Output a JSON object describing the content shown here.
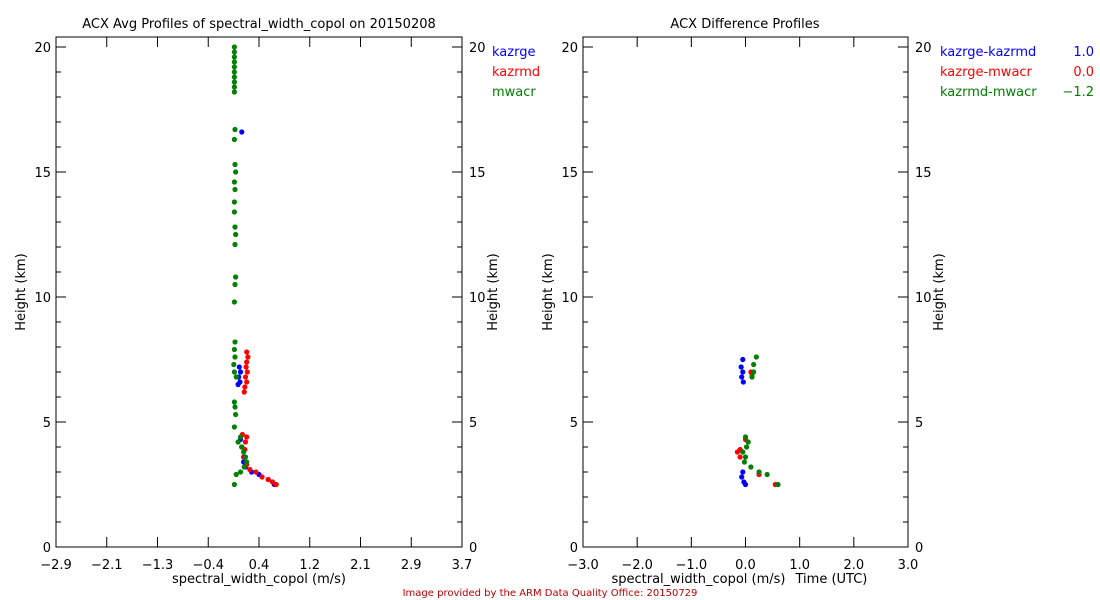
{
  "footer": {
    "credit": "Image provided by the ARM Data Quality Office: 20150729"
  },
  "chart_data": [
    {
      "type": "scatter",
      "title": "ACX Avg Profiles of spectral_width_copol on 20150208",
      "xlabel": "spectral_width_copol (m/s)",
      "ylabel": "Height (km)",
      "ylabel_right": "Height (km)",
      "xlim": [
        -2.9,
        3.7
      ],
      "ylim": [
        0,
        20.4
      ],
      "xticks": [
        "-2.9",
        "-2.1",
        "-1.3",
        "-0.4",
        "0.4",
        "1.2",
        "2.1",
        "2.9",
        "3.7"
      ],
      "yticks": [
        "0",
        "5",
        "10",
        "15",
        "20"
      ],
      "legend_placement": "right-outside",
      "series": [
        {
          "name": "kazrge",
          "color": "#0000ff",
          "points": [
            [
              0.12,
              16.6
            ],
            [
              0.08,
              7.2
            ],
            [
              0.1,
              7.0
            ],
            [
              0.07,
              6.8
            ],
            [
              0.09,
              6.6
            ],
            [
              0.06,
              6.5
            ],
            [
              0.1,
              4.3
            ],
            [
              0.12,
              4.0
            ],
            [
              0.15,
              3.6
            ],
            [
              0.15,
              3.4
            ],
            [
              0.18,
              3.2
            ],
            [
              0.28,
              3.0
            ],
            [
              0.4,
              2.9
            ],
            [
              0.55,
              2.7
            ],
            [
              0.65,
              2.5
            ]
          ]
        },
        {
          "name": "kazrmd",
          "color": "#ff0000",
          "points": [
            [
              0.2,
              7.8
            ],
            [
              0.22,
              7.6
            ],
            [
              0.2,
              7.4
            ],
            [
              0.19,
              7.2
            ],
            [
              0.21,
              7.0
            ],
            [
              0.18,
              6.8
            ],
            [
              0.2,
              6.6
            ],
            [
              0.17,
              6.4
            ],
            [
              0.16,
              6.2
            ],
            [
              0.13,
              4.5
            ],
            [
              0.2,
              4.4
            ],
            [
              0.18,
              4.2
            ],
            [
              0.17,
              3.9
            ],
            [
              0.16,
              3.6
            ],
            [
              0.2,
              3.3
            ],
            [
              0.25,
              3.1
            ],
            [
              0.35,
              3.0
            ],
            [
              0.45,
              2.8
            ],
            [
              0.55,
              2.7
            ],
            [
              0.62,
              2.6
            ],
            [
              0.68,
              2.5
            ]
          ]
        },
        {
          "name": "mwacr",
          "color": "#008000",
          "points": [
            [
              0.0,
              20.0
            ],
            [
              0.0,
              19.8
            ],
            [
              0.0,
              19.6
            ],
            [
              0.0,
              19.4
            ],
            [
              0.0,
              19.2
            ],
            [
              0.0,
              19.0
            ],
            [
              0.0,
              18.8
            ],
            [
              0.0,
              18.6
            ],
            [
              0.0,
              18.4
            ],
            [
              0.0,
              18.2
            ],
            [
              0.01,
              16.7
            ],
            [
              0.0,
              16.3
            ],
            [
              0.01,
              15.3
            ],
            [
              0.02,
              15.0
            ],
            [
              0.0,
              14.6
            ],
            [
              0.01,
              14.3
            ],
            [
              0.0,
              13.8
            ],
            [
              0.0,
              13.4
            ],
            [
              0.01,
              12.8
            ],
            [
              0.02,
              12.5
            ],
            [
              0.01,
              12.1
            ],
            [
              0.02,
              10.8
            ],
            [
              0.01,
              10.5
            ],
            [
              0.0,
              9.8
            ],
            [
              0.01,
              8.2
            ],
            [
              0.0,
              7.9
            ],
            [
              0.01,
              7.6
            ],
            [
              -0.01,
              7.3
            ],
            [
              0.0,
              7.0
            ],
            [
              0.03,
              6.8
            ],
            [
              0.0,
              5.8
            ],
            [
              0.01,
              5.6
            ],
            [
              0.02,
              5.3
            ],
            [
              0.0,
              4.8
            ],
            [
              0.1,
              4.4
            ],
            [
              0.06,
              4.2
            ],
            [
              0.12,
              4.0
            ],
            [
              0.15,
              3.8
            ],
            [
              0.18,
              3.6
            ],
            [
              0.2,
              3.4
            ],
            [
              0.16,
              3.2
            ],
            [
              0.1,
              3.0
            ],
            [
              0.03,
              2.9
            ],
            [
              0.0,
              2.5
            ]
          ]
        }
      ]
    },
    {
      "type": "scatter",
      "title": "ACX Difference Profiles",
      "xlabel": "spectral_width_copol (m/s)",
      "xlabel_overlap": "Time (UTC)",
      "ylabel": "Height (km)",
      "ylabel_right": "Height (km)",
      "xlim": [
        -3.0,
        3.0
      ],
      "ylim": [
        0,
        20.4
      ],
      "xticks": [
        "-3.0",
        "-2.0",
        "-1.0",
        "0.0",
        "1.0",
        "2.0",
        "3.0"
      ],
      "yticks": [
        "0",
        "5",
        "10",
        "15",
        "20"
      ],
      "legend_placement": "right-outside",
      "series": [
        {
          "name": "kazrge-kazrmd",
          "value": "1.0",
          "color": "#0000ff",
          "points": [
            [
              -0.05,
              7.5
            ],
            [
              -0.08,
              7.2
            ],
            [
              -0.05,
              7.0
            ],
            [
              -0.07,
              6.8
            ],
            [
              -0.04,
              6.6
            ],
            [
              -0.05,
              3.0
            ],
            [
              -0.07,
              2.8
            ],
            [
              -0.03,
              2.6
            ],
            [
              0.0,
              2.5
            ]
          ]
        },
        {
          "name": "kazrge-mwacr",
          "value": "0.0",
          "color": "#ff0000",
          "points": [
            [
              0.1,
              7.0
            ],
            [
              0.12,
              6.9
            ],
            [
              -0.1,
              3.9
            ],
            [
              -0.15,
              3.8
            ],
            [
              -0.1,
              3.6
            ],
            [
              0.0,
              4.3
            ],
            [
              0.25,
              2.9
            ],
            [
              0.55,
              2.5
            ]
          ]
        },
        {
          "name": "kazrmd-mwacr",
          "value": "-1.2",
          "color": "#008000",
          "points": [
            [
              0.2,
              7.6
            ],
            [
              0.15,
              7.3
            ],
            [
              0.15,
              7.0
            ],
            [
              0.12,
              6.8
            ],
            [
              0.0,
              4.4
            ],
            [
              0.05,
              4.2
            ],
            [
              0.02,
              4.0
            ],
            [
              -0.05,
              3.8
            ],
            [
              0.0,
              3.6
            ],
            [
              -0.02,
              3.4
            ],
            [
              0.1,
              3.2
            ],
            [
              0.25,
              3.0
            ],
            [
              0.4,
              2.9
            ],
            [
              0.6,
              2.5
            ]
          ]
        }
      ]
    }
  ]
}
